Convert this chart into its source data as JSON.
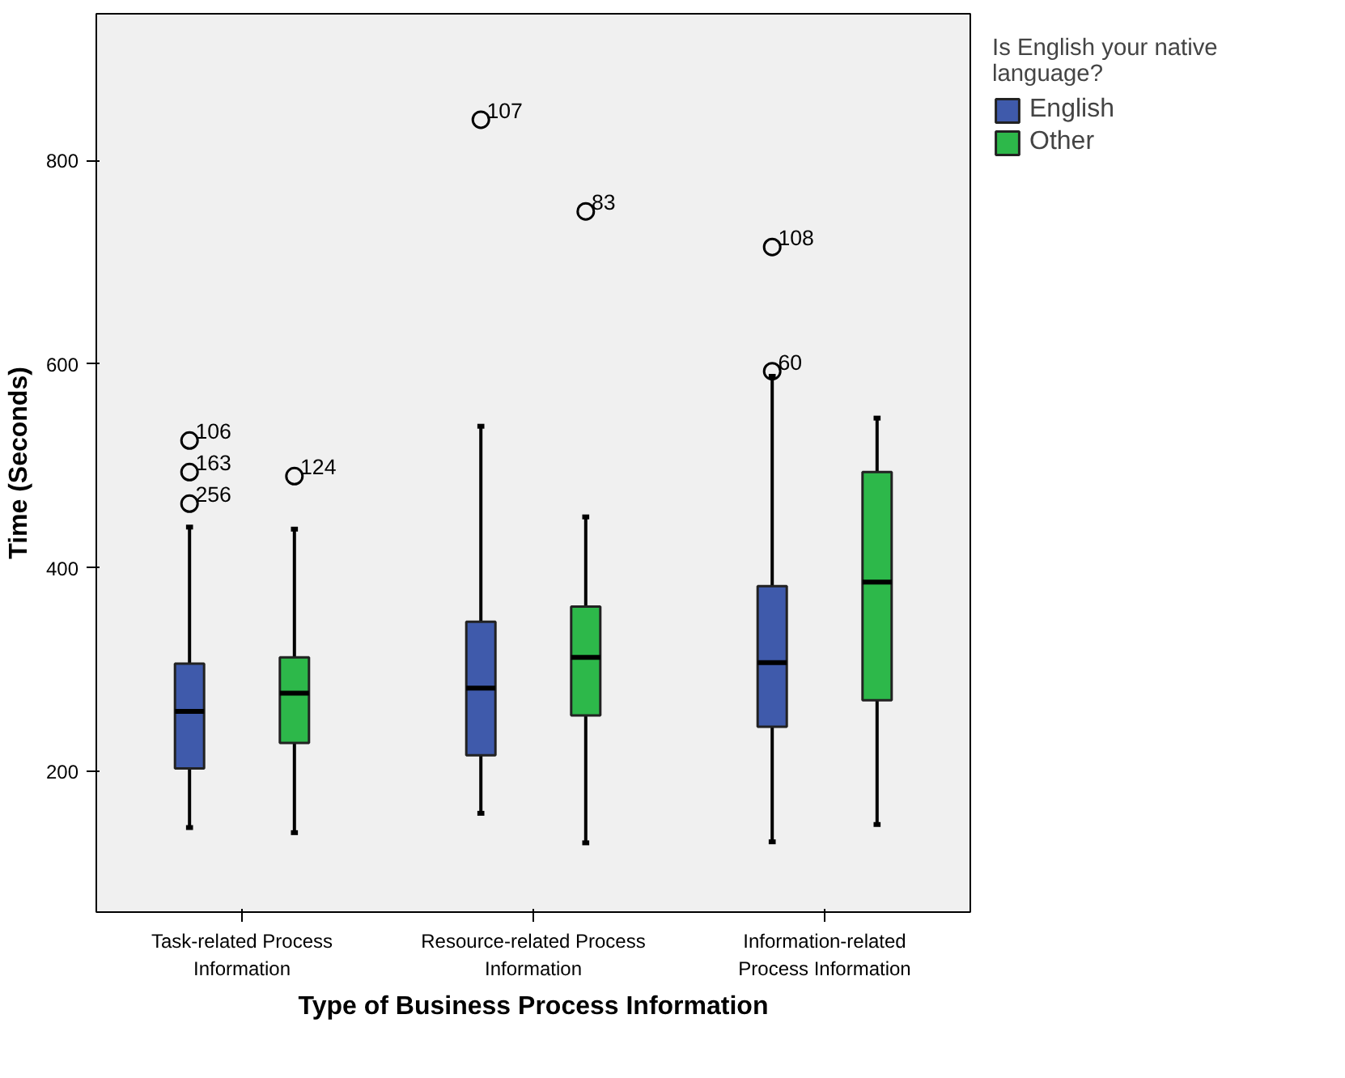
{
  "chart_data": {
    "type": "box",
    "xlabel": "Type of Business Process Information",
    "ylabel": "Time (Seconds)",
    "legend_title": "Is English your native\nlanguage?",
    "categories": [
      "Task-related Process\nInformation",
      "Resource-related Process\nInformation",
      "Information-related\nProcess Information"
    ],
    "series": [
      {
        "name": "English",
        "color": "#3f5aab",
        "boxes": [
          {
            "low": 145,
            "q1": 203,
            "median": 259,
            "q3": 306,
            "high": 440,
            "outliers": [
              525,
              494,
              463
            ]
          },
          {
            "low": 159,
            "q1": 216,
            "median": 282,
            "q3": 347,
            "high": 539,
            "outliers": [
              840
            ]
          },
          {
            "low": 131,
            "q1": 244,
            "median": 307,
            "q3": 382,
            "high": 588,
            "outliers": [
              715,
              593
            ]
          }
        ]
      },
      {
        "name": "Other",
        "color": "#2db84a",
        "boxes": [
          {
            "low": 140,
            "q1": 228,
            "median": 277,
            "q3": 312,
            "high": 438,
            "outliers": [
              490
            ]
          },
          {
            "low": 130,
            "q1": 255,
            "median": 312,
            "q3": 362,
            "high": 450,
            "outliers": [
              750
            ]
          },
          {
            "low": 148,
            "q1": 270,
            "median": 386,
            "q3": 494,
            "high": 547
          }
        ]
      }
    ],
    "annotations": [
      "106",
      "163",
      "256",
      "124",
      "107",
      "83",
      "108",
      "60"
    ],
    "ylim": [
      62,
      944
    ],
    "yticks": [
      200,
      400,
      600,
      800
    ],
    "grid": false,
    "legend": "right"
  }
}
